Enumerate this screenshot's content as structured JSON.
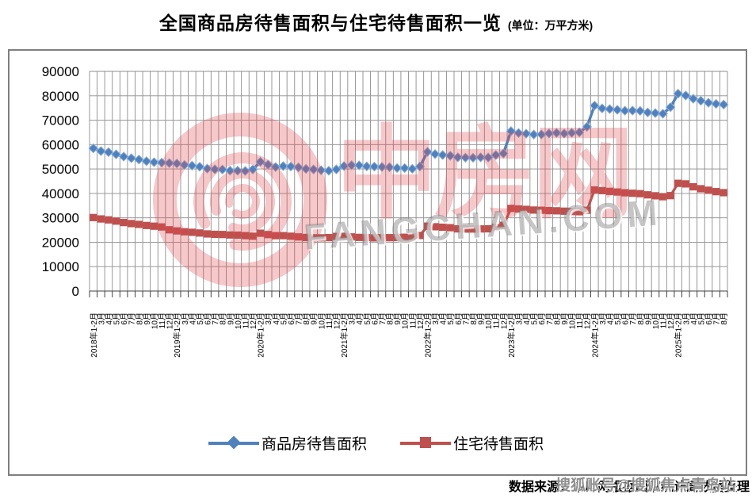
{
  "header": {
    "title": "全国商品房待售面积与住宅待售面积一览",
    "unit": "(单位：万平方米)"
  },
  "footer": {
    "source": "数据来源：中房网根据国家统计局数据整理",
    "overlay_watermark": "搜狐账号@搜狐焦点青岛站"
  },
  "watermark": {
    "cn": "中房网",
    "domain": "FANGCHAN.COM",
    "pink": "#E0494F",
    "gray": "#767676"
  },
  "chart_data": {
    "type": "line",
    "title": "全国商品房待售面积与住宅待售面积一览",
    "unit": "万平方米",
    "xlabel": "",
    "ylabel": "",
    "ylim": [
      0,
      90000
    ],
    "ytick_step": 10000,
    "yticks": [
      0,
      10000,
      20000,
      30000,
      40000,
      50000,
      60000,
      70000,
      80000,
      90000
    ],
    "grid": true,
    "legend_position": "bottom",
    "categories": [
      "2018年1-2月",
      "3月",
      "4月",
      "5月",
      "6月",
      "7月",
      "8月",
      "9月",
      "10月",
      "11月",
      "12月",
      "2019年1-2月",
      "3月",
      "4月",
      "5月",
      "6月",
      "7月",
      "8月",
      "9月",
      "10月",
      "11月",
      "12月",
      "2020年1-2月",
      "3月",
      "4月",
      "5月",
      "6月",
      "7月",
      "8月",
      "9月",
      "10月",
      "11月",
      "12月",
      "2021年1-2月",
      "3月",
      "4月",
      "5月",
      "6月",
      "7月",
      "8月",
      "9月",
      "10月",
      "11月",
      "12月",
      "2022年1-2月",
      "3月",
      "4月",
      "5月",
      "6月",
      "7月",
      "8月",
      "9月",
      "10月",
      "11月",
      "12月",
      "2023年1-2月",
      "3月",
      "4月",
      "5月",
      "6月",
      "7月",
      "8月",
      "9月",
      "10月",
      "11月",
      "12月",
      "2024年1-2月",
      "3月",
      "4月",
      "5月",
      "6月",
      "7月",
      "8月",
      "9月",
      "10月",
      "11月",
      "12月",
      "2025年1-2月",
      "3月",
      "4月",
      "5月",
      "6月",
      "7月",
      "8月"
    ],
    "series": [
      {
        "name": "商品房待售面积",
        "color": "#4F81BD",
        "marker": "diamond",
        "values": [
          58468,
          57329,
          56912,
          56010,
          55083,
          54428,
          53873,
          53191,
          52789,
          52627,
          52414,
          52251,
          51646,
          51380,
          50928,
          50162,
          49876,
          49784,
          49346,
          49323,
          49221,
          49821,
          52968,
          51779,
          50818,
          51184,
          51029,
          50682,
          50052,
          49847,
          49492,
          49287,
          49850,
          51208,
          51552,
          51511,
          51087,
          50983,
          50864,
          50738,
          50385,
          50388,
          50082,
          51023,
          57026,
          56113,
          55735,
          55433,
          54784,
          54655,
          54605,
          54767,
          54734,
          55709,
          56366,
          65528,
          64770,
          64487,
          64120,
          64159,
          64564,
          64795,
          64537,
          64835,
          65023,
          67295,
          75969,
          74833,
          74553,
          74256,
          73894,
          73926,
          73811,
          73177,
          72909,
          72645,
          75327,
          80864,
          80114,
          78798,
          77941,
          77152,
          76686,
          76413
        ]
      },
      {
        "name": "住宅待售面积",
        "color": "#C0504D",
        "marker": "square",
        "values": [
          30116,
          29541,
          29160,
          28660,
          28065,
          27637,
          27316,
          26869,
          26578,
          26260,
          25091,
          24644,
          24282,
          24072,
          23787,
          23407,
          23236,
          23166,
          22973,
          22901,
          22694,
          22473,
          23690,
          23134,
          22687,
          22699,
          22472,
          22181,
          21961,
          21828,
          21814,
          21893,
          22379,
          22425,
          22185,
          21984,
          21857,
          21799,
          21877,
          21874,
          21935,
          22035,
          22254,
          22761,
          26592,
          26343,
          26153,
          25950,
          25478,
          25405,
          25413,
          25455,
          25508,
          26118,
          26947,
          33852,
          33646,
          33464,
          33185,
          33100,
          32965,
          32870,
          32725,
          32566,
          32494,
          33119,
          41408,
          41144,
          40835,
          40571,
          40263,
          40075,
          39894,
          39415,
          39023,
          38652,
          39088,
          44133,
          43900,
          42710,
          41916,
          41310,
          40728,
          40303
        ]
      }
    ]
  }
}
